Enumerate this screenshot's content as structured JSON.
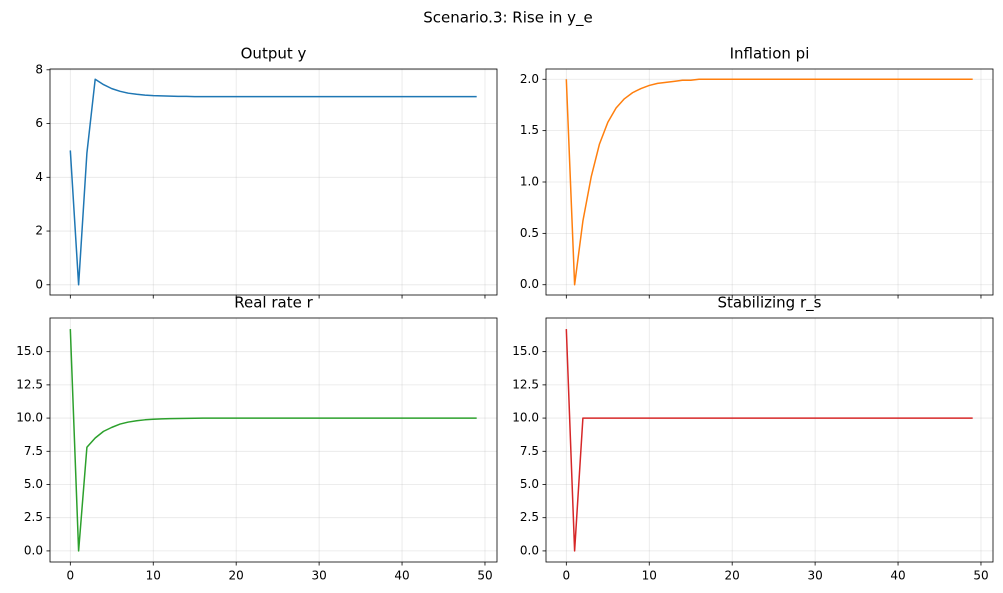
{
  "title": "Scenario.3: Rise in y_e",
  "chart_data": [
    {
      "type": "line",
      "title": "Output y",
      "color": "#1f77b4",
      "grid": true,
      "show_xtick_labels": false,
      "x": [
        0,
        1,
        2,
        3,
        4,
        5,
        6,
        7,
        8,
        9,
        10,
        11,
        12,
        13,
        14,
        15,
        16,
        17,
        18,
        19,
        20,
        21,
        22,
        23,
        24,
        25,
        26,
        27,
        28,
        29,
        30,
        31,
        32,
        33,
        34,
        35,
        36,
        37,
        38,
        39,
        40,
        41,
        42,
        43,
        44,
        45,
        46,
        47,
        48,
        49
      ],
      "values": [
        5,
        0,
        4.9,
        7.65,
        7.45,
        7.3,
        7.2,
        7.13,
        7.09,
        7.06,
        7.04,
        7.03,
        7.02,
        7.01,
        7.01,
        7,
        7,
        7,
        7,
        7,
        7,
        7,
        7,
        7,
        7,
        7,
        7,
        7,
        7,
        7,
        7,
        7,
        7,
        7,
        7,
        7,
        7,
        7,
        7,
        7,
        7,
        7,
        7,
        7,
        7,
        7,
        7,
        7,
        7,
        7
      ],
      "xlim": [
        -2.45,
        51.45
      ],
      "xticks": [
        0,
        10,
        20,
        30,
        40,
        50
      ],
      "ylim": [
        -0.38,
        8.03
      ],
      "yticks": [
        0,
        2,
        4,
        6,
        8
      ]
    },
    {
      "type": "line",
      "title": "Inflation pi",
      "color": "#ff7f0e",
      "grid": true,
      "show_xtick_labels": false,
      "x": [
        0,
        1,
        2,
        3,
        4,
        5,
        6,
        7,
        8,
        9,
        10,
        11,
        12,
        13,
        14,
        15,
        16,
        17,
        18,
        19,
        20,
        21,
        22,
        23,
        24,
        25,
        26,
        27,
        28,
        29,
        30,
        31,
        32,
        33,
        34,
        35,
        36,
        37,
        38,
        39,
        40,
        41,
        42,
        43,
        44,
        45,
        46,
        47,
        48,
        49
      ],
      "values": [
        2,
        0,
        0.62,
        1.05,
        1.37,
        1.58,
        1.72,
        1.81,
        1.87,
        1.91,
        1.94,
        1.96,
        1.97,
        1.98,
        1.99,
        1.99,
        2,
        2,
        2,
        2,
        2,
        2,
        2,
        2,
        2,
        2,
        2,
        2,
        2,
        2,
        2,
        2,
        2,
        2,
        2,
        2,
        2,
        2,
        2,
        2,
        2,
        2,
        2,
        2,
        2,
        2,
        2,
        2,
        2,
        2
      ],
      "xlim": [
        -2.45,
        51.45
      ],
      "xticks": [
        0,
        10,
        20,
        30,
        40,
        50
      ],
      "ylim": [
        -0.1,
        2.1
      ],
      "yticks": [
        {
          "value": 0,
          "label": "0.0"
        },
        {
          "value": 0.5,
          "label": "0.5"
        },
        {
          "value": 1,
          "label": "1.0"
        },
        {
          "value": 1.5,
          "label": "1.5"
        },
        {
          "value": 2,
          "label": "2.0"
        }
      ]
    },
    {
      "type": "line",
      "title": "Real rate r",
      "color": "#2ca02c",
      "grid": true,
      "show_xtick_labels": true,
      "x": [
        0,
        1,
        2,
        3,
        4,
        5,
        6,
        7,
        8,
        9,
        10,
        11,
        12,
        13,
        14,
        15,
        16,
        17,
        18,
        19,
        20,
        21,
        22,
        23,
        24,
        25,
        26,
        27,
        28,
        29,
        30,
        31,
        32,
        33,
        34,
        35,
        36,
        37,
        38,
        39,
        40,
        41,
        42,
        43,
        44,
        45,
        46,
        47,
        48,
        49
      ],
      "values": [
        16.7,
        0,
        7.8,
        8.5,
        9,
        9.3,
        9.55,
        9.7,
        9.8,
        9.87,
        9.91,
        9.94,
        9.96,
        9.97,
        9.98,
        9.99,
        10,
        10,
        10,
        10,
        10,
        10,
        10,
        10,
        10,
        10,
        10,
        10,
        10,
        10,
        10,
        10,
        10,
        10,
        10,
        10,
        10,
        10,
        10,
        10,
        10,
        10,
        10,
        10,
        10,
        10,
        10,
        10,
        10,
        10
      ],
      "xlim": [
        -2.45,
        51.45
      ],
      "xticks": [
        0,
        10,
        20,
        30,
        40,
        50
      ],
      "ylim": [
        -0.835,
        17.535
      ],
      "yticks": [
        {
          "value": 0,
          "label": "0.0"
        },
        {
          "value": 2.5,
          "label": "2.5"
        },
        {
          "value": 5,
          "label": "5.0"
        },
        {
          "value": 7.5,
          "label": "7.5"
        },
        {
          "value": 10,
          "label": "10.0"
        },
        {
          "value": 12.5,
          "label": "12.5"
        },
        {
          "value": 15,
          "label": "15.0"
        }
      ]
    },
    {
      "type": "line",
      "title": "Stabilizing r_s",
      "color": "#d62728",
      "grid": true,
      "show_xtick_labels": true,
      "x": [
        0,
        1,
        2,
        3,
        4,
        5,
        6,
        7,
        8,
        9,
        10,
        11,
        12,
        13,
        14,
        15,
        16,
        17,
        18,
        19,
        20,
        21,
        22,
        23,
        24,
        25,
        26,
        27,
        28,
        29,
        30,
        31,
        32,
        33,
        34,
        35,
        36,
        37,
        38,
        39,
        40,
        41,
        42,
        43,
        44,
        45,
        46,
        47,
        48,
        49
      ],
      "values": [
        16.7,
        0,
        10,
        10,
        10,
        10,
        10,
        10,
        10,
        10,
        10,
        10,
        10,
        10,
        10,
        10,
        10,
        10,
        10,
        10,
        10,
        10,
        10,
        10,
        10,
        10,
        10,
        10,
        10,
        10,
        10,
        10,
        10,
        10,
        10,
        10,
        10,
        10,
        10,
        10,
        10,
        10,
        10,
        10,
        10,
        10,
        10,
        10,
        10,
        10
      ],
      "xlim": [
        -2.45,
        51.45
      ],
      "xticks": [
        0,
        10,
        20,
        30,
        40,
        50
      ],
      "ylim": [
        -0.835,
        17.535
      ],
      "yticks": [
        {
          "value": 0,
          "label": "0.0"
        },
        {
          "value": 2.5,
          "label": "2.5"
        },
        {
          "value": 5,
          "label": "5.0"
        },
        {
          "value": 7.5,
          "label": "7.5"
        },
        {
          "value": 10,
          "label": "10.0"
        },
        {
          "value": 12.5,
          "label": "12.5"
        },
        {
          "value": 15,
          "label": "15.0"
        }
      ]
    }
  ]
}
